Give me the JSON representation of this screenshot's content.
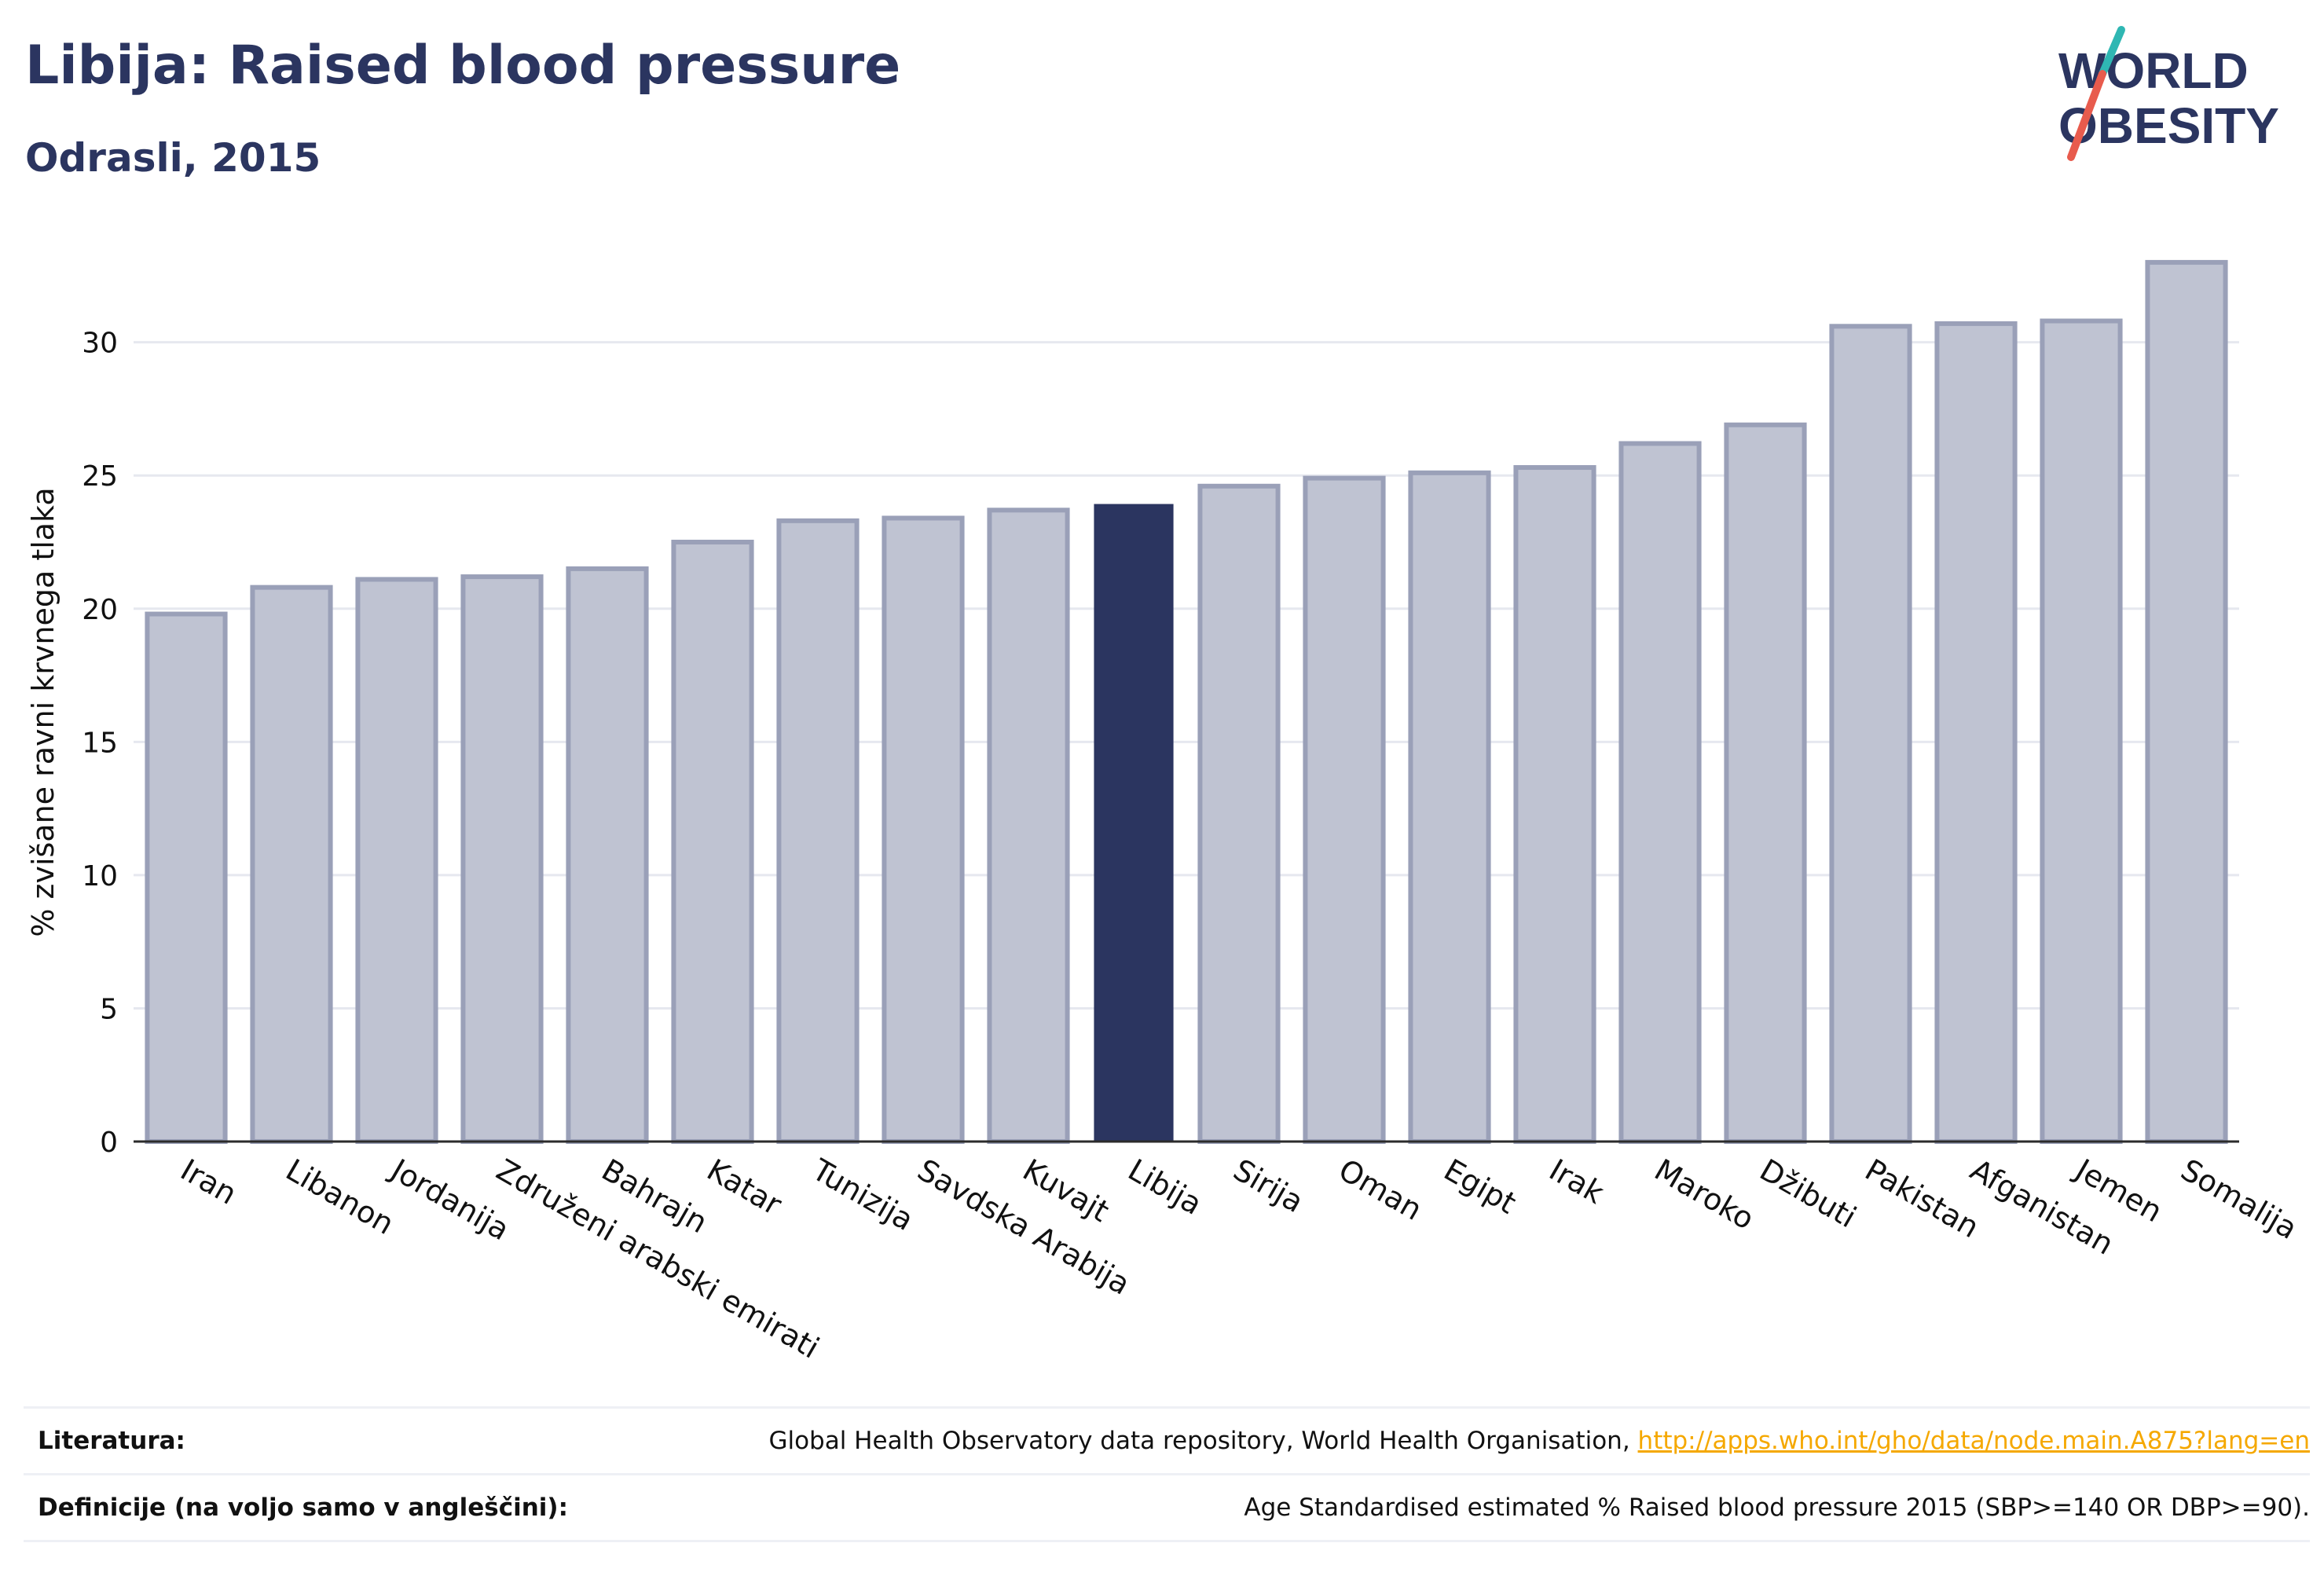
{
  "title": "Libija: Raised blood pressure",
  "subtitle": "Odrasli, 2015",
  "logo": {
    "line1": "WORLD",
    "line2": "OBESITY"
  },
  "colors": {
    "text": "#2b3560",
    "bar": "#bfc3d2",
    "bar_stroke": "#9aa0b8",
    "highlight": "#2b3560",
    "link": "#f5a800",
    "logo_teal": "#2fb7b3",
    "logo_red": "#e85b4d"
  },
  "chart_data": {
    "type": "bar",
    "categories": [
      "Iran",
      "Libanon",
      "Jordanija",
      "Združeni arabski emirati",
      "Bahrajn",
      "Katar",
      "Tunizija",
      "Savdska Arabija",
      "Kuvajt",
      "Libija",
      "Sirija",
      "Oman",
      "Egipt",
      "Irak",
      "Maroko",
      "Džibuti",
      "Pakistan",
      "Afganistan",
      "Jemen",
      "Somalija"
    ],
    "values": [
      19.8,
      20.8,
      21.1,
      21.2,
      21.5,
      22.5,
      23.3,
      23.4,
      23.7,
      23.9,
      24.6,
      24.9,
      25.1,
      25.3,
      26.2,
      26.9,
      30.6,
      30.7,
      30.8,
      33.0
    ],
    "highlight": "Libija",
    "ylabel": "% zvišane ravni krvnega tlaka",
    "xlabel": "",
    "yticks": [
      0,
      5,
      10,
      15,
      20,
      25,
      30
    ],
    "ylim": [
      0,
      34
    ],
    "grid": true,
    "legend": false
  },
  "footer": {
    "rows": [
      {
        "label": "Literatura:",
        "text": "Global Health Observatory data repository, World Health Organisation, ",
        "link": "http://apps.who.int/gho/data/node.main.A875?lang=en"
      },
      {
        "label": "Definicije (na voljo samo v angleščini):",
        "text": "Age Standardised estimated % Raised blood pressure 2015 (SBP>=140 OR DBP>=90).",
        "link": ""
      }
    ]
  }
}
